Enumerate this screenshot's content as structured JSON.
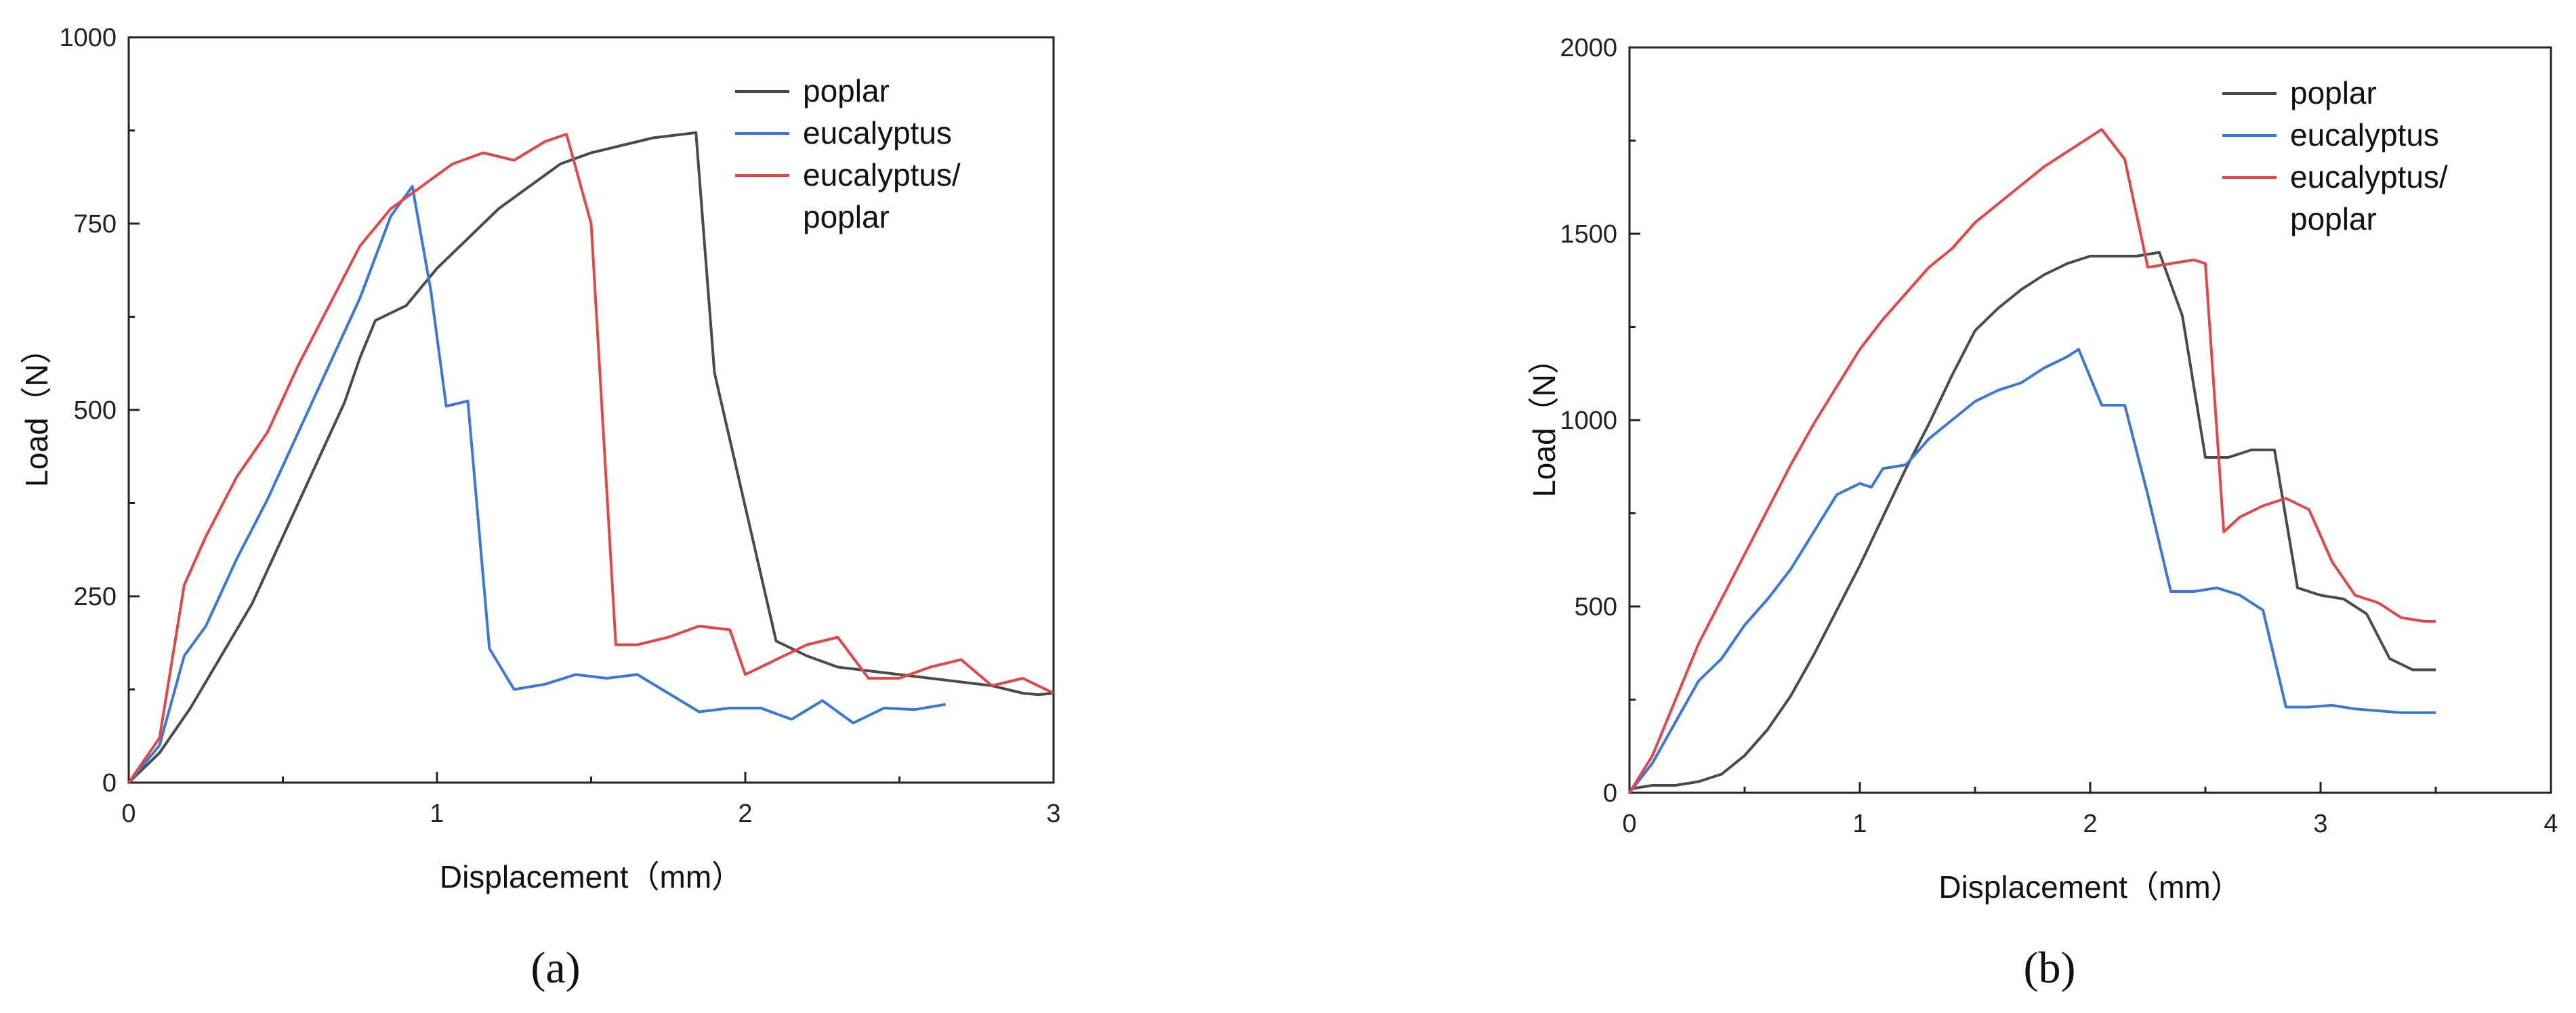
{
  "chart_data": [
    {
      "panel": "a",
      "type": "line",
      "xlabel": "Displacement（mm）",
      "ylabel": "Load（N）",
      "xlim": [
        0,
        3
      ],
      "ylim": [
        0,
        1000
      ],
      "xticks": [
        "0",
        "1",
        "2",
        "3"
      ],
      "yticks": [
        "0",
        "250",
        "500",
        "750",
        "1000"
      ],
      "grid": false,
      "legend_position": "top-right",
      "series": [
        {
          "name": "poplar",
          "color": "#4a4a4a",
          "x": [
            0,
            0.1,
            0.2,
            0.3,
            0.4,
            0.5,
            0.6,
            0.7,
            0.75,
            0.8,
            0.9,
            1.0,
            1.1,
            1.2,
            1.3,
            1.4,
            1.5,
            1.6,
            1.7,
            1.8,
            1.84,
            1.9,
            2.0,
            2.1,
            2.2,
            2.3,
            2.4,
            2.5,
            2.6,
            2.7,
            2.8,
            2.9,
            2.95,
            3.0
          ],
          "y": [
            0,
            40,
            100,
            170,
            240,
            330,
            420,
            510,
            570,
            620,
            640,
            690,
            730,
            770,
            800,
            830,
            845,
            855,
            865,
            870,
            872,
            550,
            370,
            190,
            170,
            155,
            150,
            145,
            140,
            135,
            130,
            120,
            118,
            120
          ]
        },
        {
          "name": "eucalyptus",
          "color": "#3a78d8",
          "x": [
            0,
            0.1,
            0.18,
            0.25,
            0.35,
            0.45,
            0.55,
            0.65,
            0.75,
            0.85,
            0.92,
            0.98,
            1.03,
            1.1,
            1.17,
            1.25,
            1.35,
            1.45,
            1.55,
            1.65,
            1.75,
            1.85,
            1.95,
            2.05,
            2.15,
            2.25,
            2.35,
            2.45,
            2.55,
            2.65
          ],
          "y": [
            0,
            50,
            170,
            210,
            300,
            380,
            470,
            560,
            650,
            760,
            800,
            660,
            505,
            512,
            180,
            125,
            132,
            145,
            140,
            145,
            120,
            95,
            100,
            100,
            85,
            110,
            80,
            100,
            98,
            105
          ]
        },
        {
          "name": "eucalyptus/poplar",
          "color": "#e04848",
          "x": [
            0,
            0.1,
            0.18,
            0.25,
            0.35,
            0.45,
            0.55,
            0.65,
            0.75,
            0.85,
            0.95,
            1.05,
            1.15,
            1.25,
            1.35,
            1.42,
            1.5,
            1.58,
            1.65,
            1.75,
            1.85,
            1.95,
            2.0,
            2.1,
            2.2,
            2.3,
            2.4,
            2.5,
            2.6,
            2.7,
            2.8,
            2.9,
            3.0
          ],
          "y": [
            0,
            60,
            265,
            330,
            410,
            470,
            560,
            640,
            720,
            770,
            800,
            830,
            845,
            835,
            860,
            870,
            750,
            185,
            185,
            195,
            210,
            205,
            145,
            165,
            185,
            195,
            140,
            140,
            155,
            165,
            130,
            140,
            120
          ]
        }
      ]
    },
    {
      "panel": "b",
      "type": "line",
      "xlabel": "Displacement（mm）",
      "ylabel": "Load（N）",
      "xlim": [
        0,
        4
      ],
      "ylim": [
        0,
        2000
      ],
      "xticks": [
        "0",
        "1",
        "2",
        "3",
        "4"
      ],
      "yticks": [
        "0",
        "500",
        "1000",
        "1500",
        "2000"
      ],
      "grid": false,
      "legend_position": "top-right",
      "series": [
        {
          "name": "poplar",
          "color": "#4a4a4a",
          "x": [
            0,
            0.1,
            0.2,
            0.3,
            0.4,
            0.5,
            0.6,
            0.7,
            0.8,
            0.9,
            1.0,
            1.1,
            1.2,
            1.3,
            1.4,
            1.5,
            1.6,
            1.7,
            1.8,
            1.9,
            2.0,
            2.1,
            2.2,
            2.3,
            2.4,
            2.5,
            2.6,
            2.7,
            2.8,
            2.9,
            3.0,
            3.1,
            3.2,
            3.3,
            3.4,
            3.5
          ],
          "y": [
            10,
            20,
            20,
            30,
            50,
            100,
            170,
            260,
            370,
            490,
            610,
            740,
            870,
            990,
            1120,
            1240,
            1300,
            1350,
            1390,
            1420,
            1440,
            1440,
            1440,
            1450,
            1280,
            900,
            900,
            920,
            920,
            550,
            530,
            520,
            480,
            360,
            330,
            330
          ]
        },
        {
          "name": "eucalyptus",
          "color": "#3a78d8",
          "x": [
            0,
            0.1,
            0.2,
            0.3,
            0.4,
            0.5,
            0.6,
            0.7,
            0.8,
            0.9,
            1.0,
            1.05,
            1.1,
            1.2,
            1.3,
            1.4,
            1.5,
            1.6,
            1.7,
            1.8,
            1.9,
            1.95,
            2.05,
            2.15,
            2.25,
            2.35,
            2.45,
            2.55,
            2.65,
            2.75,
            2.85,
            2.95,
            3.05,
            3.15,
            3.25,
            3.35,
            3.45,
            3.5
          ],
          "y": [
            0,
            80,
            190,
            300,
            360,
            450,
            520,
            600,
            700,
            800,
            830,
            820,
            870,
            880,
            950,
            1000,
            1050,
            1080,
            1100,
            1140,
            1170,
            1190,
            1040,
            1040,
            800,
            540,
            540,
            550,
            530,
            490,
            230,
            230,
            235,
            225,
            220,
            215,
            215,
            215
          ]
        },
        {
          "name": "eucalyptus/poplar",
          "color": "#e04848",
          "x": [
            0,
            0.1,
            0.2,
            0.3,
            0.4,
            0.5,
            0.6,
            0.7,
            0.8,
            0.9,
            1.0,
            1.1,
            1.2,
            1.3,
            1.4,
            1.5,
            1.6,
            1.7,
            1.8,
            1.9,
            2.0,
            2.05,
            2.15,
            2.25,
            2.35,
            2.45,
            2.5,
            2.58,
            2.65,
            2.75,
            2.85,
            2.95,
            3.05,
            3.15,
            3.25,
            3.35,
            3.45,
            3.5
          ],
          "y": [
            0,
            100,
            250,
            400,
            520,
            640,
            760,
            880,
            990,
            1090,
            1190,
            1270,
            1340,
            1410,
            1460,
            1530,
            1580,
            1630,
            1680,
            1720,
            1760,
            1780,
            1700,
            1410,
            1420,
            1430,
            1420,
            700,
            740,
            770,
            790,
            760,
            620,
            530,
            510,
            470,
            460,
            460
          ]
        }
      ]
    }
  ],
  "panel_labels": [
    "(a)",
    "(b)"
  ]
}
